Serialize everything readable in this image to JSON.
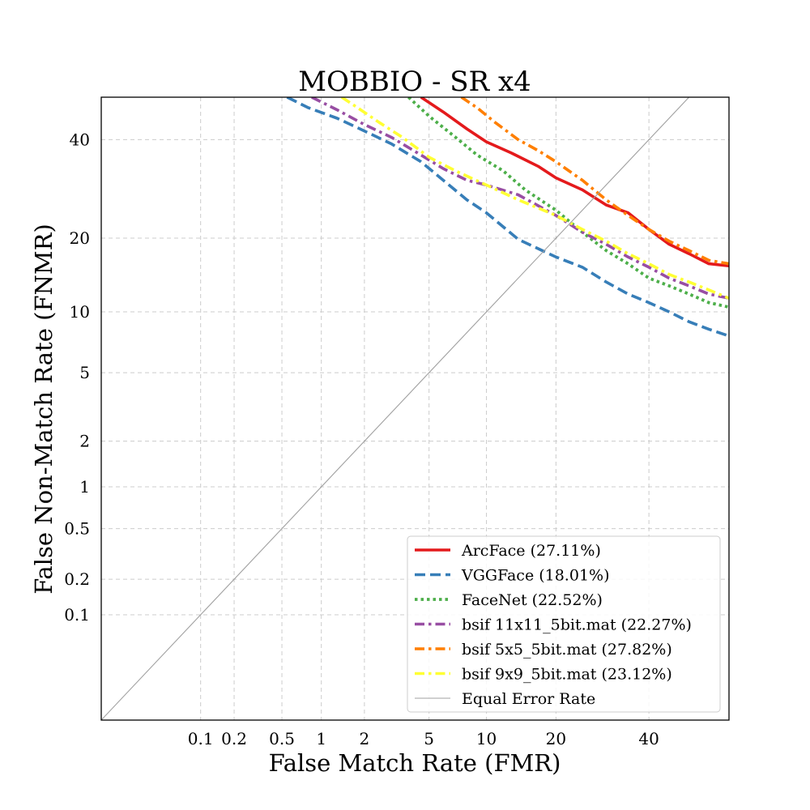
{
  "chart_data": {
    "type": "line",
    "title": "MOBBIO - SR x4",
    "xlabel": "False Match Rate (FMR)",
    "ylabel": "False Non-Match Rate (FNMR)",
    "scale": "probit",
    "xlim": [
      0.01,
      60
    ],
    "ylim": [
      0.01,
      50
    ],
    "x_ticks": [
      0.1,
      0.2,
      0.5,
      1,
      2,
      5,
      10,
      20,
      40
    ],
    "x_tick_labels": [
      "0.1",
      "0.2",
      "0.5",
      "1",
      "2",
      "5",
      "10",
      "20",
      "40"
    ],
    "y_ticks": [
      0.1,
      0.2,
      0.5,
      1,
      2,
      5,
      10,
      20,
      40
    ],
    "y_tick_labels": [
      "0.1",
      "0.2",
      "0.5",
      "1",
      "2",
      "5",
      "10",
      "20",
      "40"
    ],
    "grid": true,
    "legend_position": "lower-right",
    "series": [
      {
        "name": "ArcFace (27.11%)",
        "color": "#e41a1c",
        "dash": "solid",
        "points": [
          [
            4.5,
            50
          ],
          [
            6,
            46.5
          ],
          [
            8,
            42.5
          ],
          [
            10,
            39.5
          ],
          [
            13,
            37
          ],
          [
            17,
            34
          ],
          [
            20,
            31.5
          ],
          [
            25,
            29
          ],
          [
            30,
            26
          ],
          [
            35,
            24.5
          ],
          [
            40,
            21.5
          ],
          [
            45,
            19
          ],
          [
            50,
            17.5
          ],
          [
            55,
            16
          ],
          [
            60,
            15.7
          ]
        ]
      },
      {
        "name": "VGGFace (18.01%)",
        "color": "#377eb8",
        "dash": "dashed",
        "points": [
          [
            0.55,
            50
          ],
          [
            0.8,
            47.5
          ],
          [
            1.3,
            45
          ],
          [
            2,
            42
          ],
          [
            3,
            39
          ],
          [
            4.5,
            35
          ],
          [
            6,
            31
          ],
          [
            8,
            27
          ],
          [
            10,
            24.5
          ],
          [
            14,
            19.8
          ],
          [
            20,
            17
          ],
          [
            25,
            15.5
          ],
          [
            30,
            13.5
          ],
          [
            35,
            12
          ],
          [
            40,
            11
          ],
          [
            45,
            10
          ],
          [
            50,
            9
          ],
          [
            55,
            8.3
          ],
          [
            60,
            7.7
          ]
        ]
      },
      {
        "name": "FaceNet (22.52%)",
        "color": "#4daf4a",
        "dash": "dotted",
        "points": [
          [
            3.8,
            50
          ],
          [
            5,
            45.5
          ],
          [
            7,
            40.5
          ],
          [
            9,
            36.5
          ],
          [
            12,
            33
          ],
          [
            15,
            29
          ],
          [
            20,
            25
          ],
          [
            25,
            21
          ],
          [
            30,
            18
          ],
          [
            35,
            16
          ],
          [
            40,
            14
          ],
          [
            45,
            13
          ],
          [
            50,
            12
          ],
          [
            55,
            11
          ],
          [
            60,
            10.5
          ]
        ]
      },
      {
        "name": "bsif 11x11_5bit.mat (22.27%)",
        "color": "#984ea3",
        "dash": "dashdot",
        "points": [
          [
            0.85,
            50
          ],
          [
            1.3,
            47
          ],
          [
            2,
            43.5
          ],
          [
            3,
            40.5
          ],
          [
            4.5,
            36.5
          ],
          [
            6,
            33.5
          ],
          [
            8,
            31
          ],
          [
            10,
            30
          ],
          [
            14,
            28
          ],
          [
            20,
            24
          ],
          [
            25,
            21
          ],
          [
            30,
            19
          ],
          [
            35,
            17
          ],
          [
            40,
            15.5
          ],
          [
            45,
            14
          ],
          [
            50,
            13
          ],
          [
            55,
            12
          ],
          [
            60,
            11.5
          ]
        ]
      },
      {
        "name": "bsif 5x5_5bit.mat (27.82%)",
        "color": "#ff7f00",
        "dash": "dashdot",
        "points": [
          [
            7.5,
            50
          ],
          [
            9,
            47.5
          ],
          [
            11,
            44
          ],
          [
            14,
            40
          ],
          [
            17,
            37.5
          ],
          [
            20,
            35
          ],
          [
            25,
            31
          ],
          [
            30,
            27
          ],
          [
            35,
            24
          ],
          [
            40,
            21.5
          ],
          [
            45,
            19.5
          ],
          [
            50,
            18
          ],
          [
            55,
            16.5
          ],
          [
            60,
            16
          ]
        ]
      },
      {
        "name": "bsif 9x9_5bit.mat (23.12%)",
        "color": "#ffff33",
        "dash": "dashdot",
        "points": [
          [
            1.4,
            50
          ],
          [
            1.8,
            47.5
          ],
          [
            2.5,
            44
          ],
          [
            3.5,
            40.5
          ],
          [
            5,
            36
          ],
          [
            7,
            33
          ],
          [
            10,
            30
          ],
          [
            14,
            27
          ],
          [
            20,
            24
          ],
          [
            25,
            21.5
          ],
          [
            30,
            19.5
          ],
          [
            35,
            17.5
          ],
          [
            40,
            16
          ],
          [
            45,
            14.5
          ],
          [
            50,
            13.5
          ],
          [
            55,
            12.5
          ],
          [
            60,
            11.5
          ]
        ]
      },
      {
        "name": "Equal Error Rate",
        "color": "#a0a0a0",
        "dash": "thin",
        "points": [
          [
            0.01,
            0.01
          ],
          [
            50,
            50
          ]
        ]
      }
    ]
  }
}
